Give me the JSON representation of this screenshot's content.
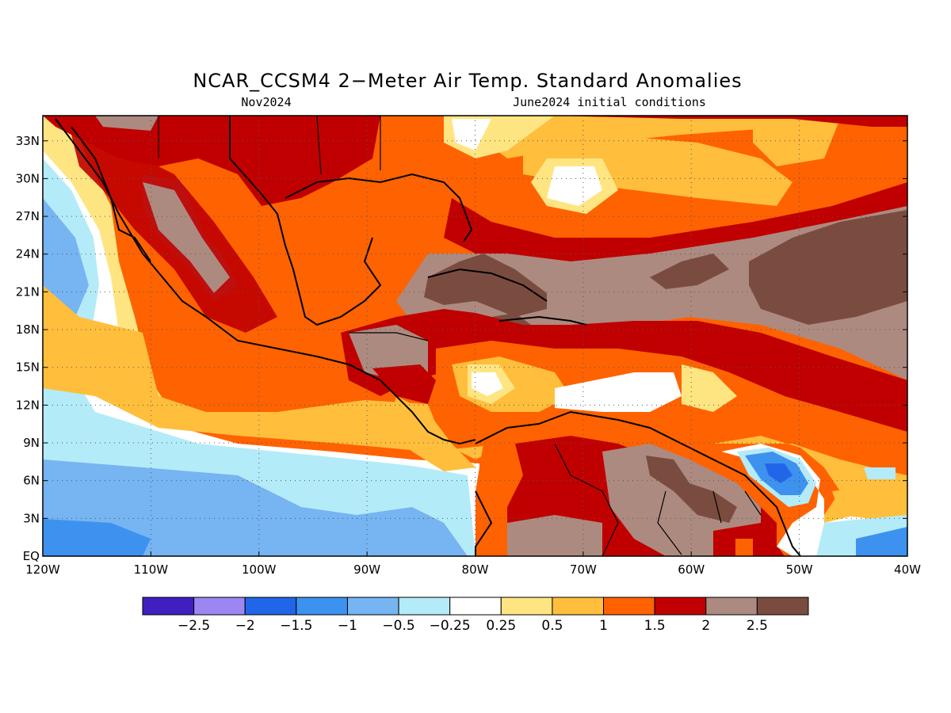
{
  "title": "NCAR_CCSM4 2−Meter Air Temp. Standard Anomalies",
  "subtitle_left": "Nov2024",
  "subtitle_right": "June2024 initial conditions",
  "map": {
    "lat_labels": [
      "33N",
      "30N",
      "27N",
      "24N",
      "21N",
      "18N",
      "15N",
      "12N",
      "9N",
      "6N",
      "3N",
      "EQ"
    ],
    "lon_labels": [
      "120W",
      "110W",
      "100W",
      "90W",
      "80W",
      "70W",
      "60W",
      "50W",
      "40W"
    ],
    "lat_range": [
      0,
      35
    ],
    "lon_range": [
      -120,
      -40
    ],
    "grid": true,
    "features": [
      {
        "name": "strong warm anomaly (>2.5) over the Bahamas / Cuba / Greater Antilles",
        "level": 2.5
      },
      {
        "name": "strong warm anomaly (>2.5) over the central tropical Atlantic",
        "level": 2.5
      },
      {
        "name": "strong warm anomaly (>2.5) over the Guianas / NE South America",
        "level": 2.5
      },
      {
        "name": "cold anomaly (-1 to -2) off northeastern South America",
        "level": -1.5
      },
      {
        "name": "cold anomaly (-0.5 to -1) in the eastern tropical Pacific",
        "level": -0.75
      }
    ]
  },
  "colorbar": {
    "labels": [
      "−2.5",
      "−2",
      "−1.5",
      "−1",
      "−0.5",
      "−0.25",
      "0.25",
      "0.5",
      "1",
      "1.5",
      "2",
      "2.5"
    ],
    "colors": [
      "#3f1fbf",
      "#9c87f2",
      "#2166e8",
      "#3d92f0",
      "#76b4f2",
      "#b4ebf8",
      "#ffffff",
      "#ffe582",
      "#ffbe3c",
      "#ff6200",
      "#c00000",
      "#ad8a80",
      "#7a4c40"
    ]
  }
}
